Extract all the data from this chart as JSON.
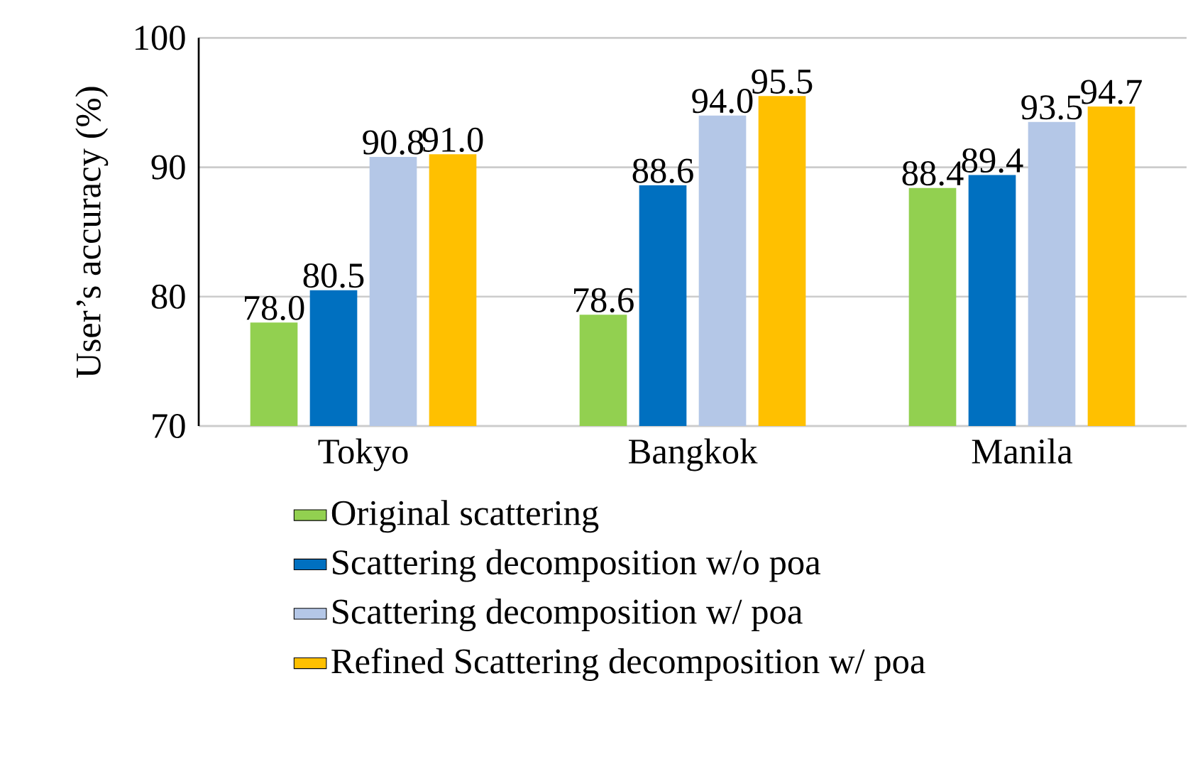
{
  "chart_data": {
    "type": "bar",
    "ylabel": "User’s accuracy (%)",
    "categories": [
      "Tokyo",
      "Bangkok",
      "Manila"
    ],
    "series": [
      {
        "name": "Original scattering",
        "color": "#92d050",
        "values": [
          78.0,
          78.6,
          88.4
        ],
        "value_labels": [
          "78.0",
          "78.6",
          "88.4"
        ]
      },
      {
        "name": "Scattering  decomposition w/o poa",
        "color": "#0070c0",
        "values": [
          80.5,
          88.6,
          89.4
        ],
        "value_labels": [
          "80.5",
          "88.6",
          "89.4"
        ]
      },
      {
        "name": "Scattering decomposition w/ poa",
        "color": "#b4c7e7",
        "values": [
          90.8,
          94.0,
          93.5
        ],
        "value_labels": [
          "90.8",
          "94.0",
          "93.5"
        ]
      },
      {
        "name": "Refined Scattering decomposition w/ poa",
        "color": "#ffc000",
        "values": [
          91.0,
          95.5,
          94.7
        ],
        "value_labels": [
          "91.0",
          "95.5",
          "94.7"
        ]
      }
    ],
    "ylim": [
      70,
      100
    ],
    "yticks": [
      70,
      80,
      90,
      100
    ],
    "grid": "y",
    "legend": "bottom"
  }
}
